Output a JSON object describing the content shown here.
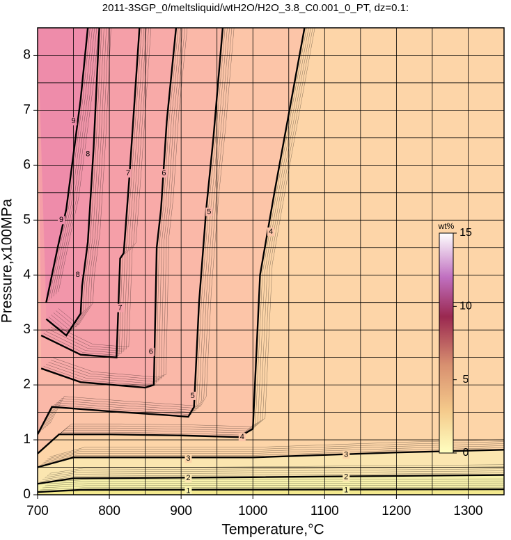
{
  "chart_data": {
    "type": "contour",
    "title": "2011-3SGP_0/meltsliquid/wtH2O/H2O_3.8_C0.001_0_PT, dz=0.1:",
    "x_label": "Temperature,°C",
    "y_label": "Pressure,x100MPa",
    "xlim": [
      700,
      1350
    ],
    "ylim": [
      0,
      8.5
    ],
    "xticks": [
      700,
      800,
      900,
      1000,
      1100,
      1200,
      1300
    ],
    "yticks": [
      0,
      1,
      2,
      3,
      4,
      5,
      6,
      7,
      8
    ],
    "xgrid": [
      750,
      800,
      850,
      900,
      950,
      1000,
      1050,
      1100,
      1150,
      1200,
      1250,
      1300
    ],
    "ygrid": [
      0.5,
      1,
      1.5,
      2,
      2.5,
      3,
      3.5,
      4,
      4.5,
      5,
      5.5,
      6,
      6.5,
      7,
      7.5,
      8
    ],
    "background": "#f3e98e",
    "contours": [
      {
        "level": 1,
        "color": "#f8f2ac",
        "x": [
          700,
          760,
          1350
        ],
        "y": [
          0.05,
          0.09,
          0.1
        ],
        "label_x": [
          910,
          1130
        ],
        "label_y": [
          0.07,
          0.08
        ]
      },
      {
        "level": 2,
        "color": "#fbe6b0",
        "x": [
          700,
          750,
          1000,
          1350
        ],
        "y": [
          0.2,
          0.3,
          0.32,
          0.36
        ],
        "label_x": [
          910,
          1130
        ],
        "label_y": [
          0.3,
          0.32
        ]
      },
      {
        "level": 3,
        "color": "#fdd5a8",
        "x": [
          700,
          750,
          1000,
          1200,
          1350
        ],
        "y": [
          0.5,
          0.68,
          0.68,
          0.77,
          0.82
        ],
        "label_x": [
          910,
          1130
        ],
        "label_y": [
          0.66,
          0.73
        ]
      },
      {
        "level": 4,
        "color": "#fcc5a8",
        "x": [
          700,
          730,
          800,
          900,
          980,
          1000,
          1010,
          1030,
          1072
        ],
        "y": [
          0.75,
          1.1,
          1.1,
          1.08,
          1.05,
          1.2,
          4.0,
          5.5,
          8.5
        ],
        "label_x": [
          1025,
          985
        ],
        "label_y": [
          4.79,
          1.05
        ]
      },
      {
        "level": 5,
        "color": "#fab8a8",
        "x": [
          700,
          720,
          800,
          880,
          910,
          918,
          925,
          935,
          945,
          958
        ],
        "y": [
          1.1,
          1.6,
          1.52,
          1.45,
          1.42,
          1.6,
          3.5,
          5.2,
          6.5,
          8.5
        ],
        "label_x": [
          939,
          916
        ],
        "label_y": [
          5.15,
          1.8
        ]
      },
      {
        "level": 6,
        "color": "#f8aaa8",
        "x": [
          705,
          760,
          850,
          862,
          866,
          872,
          880,
          893
        ],
        "y": [
          2.3,
          2.05,
          1.95,
          2.0,
          4.5,
          5.2,
          6.8,
          8.5
        ],
        "label_x": [
          876,
          858
        ],
        "label_y": [
          5.85,
          2.6
        ]
      },
      {
        "level": 7,
        "color": "#f59fa8",
        "x": [
          705,
          760,
          810,
          815,
          820,
          828,
          842
        ],
        "y": [
          2.9,
          2.55,
          2.5,
          4.3,
          4.4,
          5.8,
          8.5
        ],
        "label_x": [
          826,
          815
        ],
        "label_y": [
          5.85,
          3.4
        ]
      },
      {
        "level": 8,
        "color": "#f296aa",
        "x": [
          712,
          740,
          760,
          762,
          770,
          778,
          786
        ],
        "y": [
          3.2,
          2.9,
          3.3,
          3.8,
          4.6,
          6.3,
          8.5
        ],
        "label_x": [
          770,
          756
        ],
        "label_y": [
          6.2,
          4.0
        ]
      },
      {
        "level": 9,
        "color": "#ee8caa",
        "x": [
          712,
          728,
          740,
          752,
          760,
          770
        ],
        "y": [
          3.5,
          4.5,
          5.2,
          6.4,
          7.2,
          8.5
        ],
        "label_x": [
          733,
          750
        ],
        "label_y": [
          5.0,
          6.8
        ]
      }
    ],
    "colorbar": {
      "label": "wt%",
      "lim": [
        0,
        15
      ],
      "ticks": [
        0,
        5,
        10,
        15
      ]
    }
  }
}
